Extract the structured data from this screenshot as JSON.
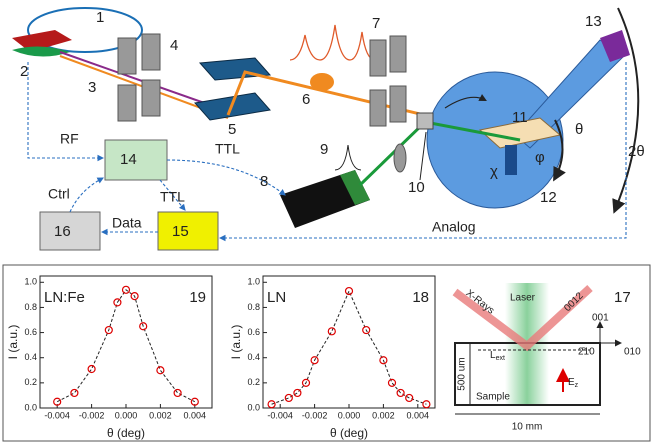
{
  "setup": {
    "components": [
      "1",
      "2",
      "3",
      "4",
      "5",
      "6",
      "7",
      "8",
      "9",
      "10",
      "11",
      "12",
      "13",
      "14",
      "15",
      "16"
    ],
    "signals": {
      "rf": "RF",
      "ttl_laser": "TTL",
      "ttl_daq": "TTL",
      "ctrl": "Ctrl",
      "data": "Data",
      "analog": "Analog"
    },
    "angles": {
      "theta": "θ",
      "two_theta": "2θ",
      "phi": "φ",
      "chi": "χ"
    }
  },
  "plots": [
    {
      "label": "LN:Fe",
      "number": "19",
      "ylabel": "I (a.u.)",
      "xlabel": "θ (deg)",
      "x": [
        -0.004,
        -0.003,
        -0.002,
        -0.001,
        -0.0005,
        0.0,
        0.0005,
        0.001,
        0.002,
        0.003,
        0.004
      ],
      "values": [
        0.05,
        0.12,
        0.31,
        0.62,
        0.84,
        0.94,
        0.89,
        0.65,
        0.3,
        0.12,
        0.05
      ],
      "xlim": [
        -0.005,
        0.005
      ],
      "ylim": [
        0,
        1.05
      ],
      "xticks": [
        -0.004,
        -0.002,
        {
          "value": 0,
          "label": "0.000"
        },
        0.002,
        0.004
      ],
      "yticks": [
        {
          "value": 0,
          "label": "0.0"
        },
        0.2,
        0.4,
        0.6,
        0.8,
        {
          "value": 1,
          "label": "1.0"
        }
      ]
    },
    {
      "label": "LN",
      "number": "18",
      "ylabel": "I (a.u.)",
      "xlabel": "θ (deg)",
      "x": [
        -0.0045,
        -0.0035,
        -0.003,
        -0.0025,
        -0.002,
        -0.001,
        0.0,
        0.001,
        0.002,
        0.0025,
        0.003,
        0.0035,
        0.0045
      ],
      "values": [
        0.03,
        0.08,
        0.12,
        0.2,
        0.38,
        0.61,
        0.93,
        0.62,
        0.38,
        0.2,
        0.12,
        0.08,
        0.03
      ],
      "xlim": [
        -0.005,
        0.005
      ],
      "ylim": [
        0,
        1.05
      ],
      "xticks": [
        -0.004,
        -0.002,
        {
          "value": 0,
          "label": "0.000"
        },
        0.002,
        0.004
      ],
      "yticks": [
        {
          "value": 0,
          "label": "0.0"
        },
        0.2,
        0.4,
        0.6,
        0.8,
        {
          "value": 1,
          "label": "1.0"
        }
      ]
    }
  ],
  "schematic": {
    "number": "17",
    "xrays": "X-Rays",
    "laser": "Laser",
    "reflection": "0012",
    "axis_001": "001",
    "axis_010": "010",
    "axis_210": "2̄10",
    "l": "L",
    "l_sub": "ext",
    "e": "E",
    "e_sub": "z",
    "sample": "Sample",
    "thickness": "500 um",
    "width": "10 mm"
  }
}
